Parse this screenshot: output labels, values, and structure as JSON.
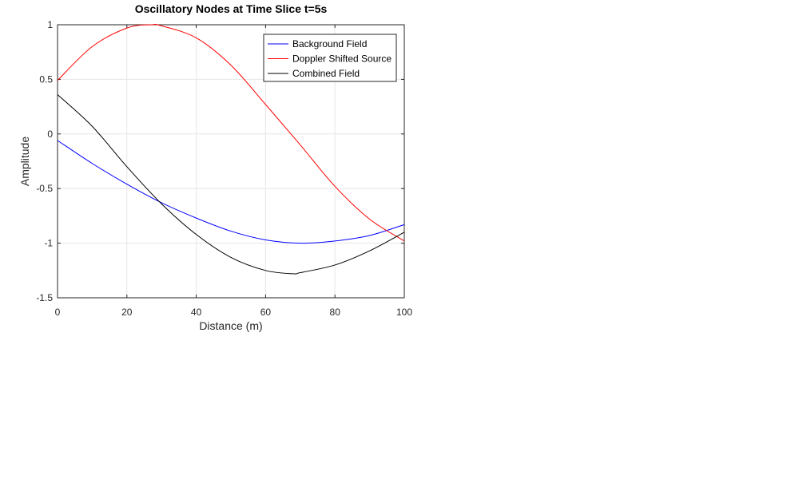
{
  "chart_data": {
    "type": "line",
    "title": "Oscillatory Nodes at Time Slice t=5s",
    "xlabel": "Distance (m)",
    "ylabel": "Amplitude",
    "xlim": [
      0,
      100
    ],
    "ylim": [
      -1.5,
      1
    ],
    "xticks": [
      0,
      20,
      40,
      60,
      80,
      100
    ],
    "yticks": [
      -1.5,
      -1,
      -0.5,
      0,
      0.5,
      1
    ],
    "xtick_labels": [
      "0",
      "20",
      "40",
      "60",
      "80",
      "100"
    ],
    "ytick_labels": [
      "-1.5",
      "-1",
      "-0.5",
      "0",
      "0.5",
      "1"
    ],
    "grid": true,
    "legend_position": "top-right",
    "series": [
      {
        "name": "Background Field",
        "color": "#0000ff",
        "x": [
          0,
          10,
          20,
          30,
          40,
          50,
          60,
          70,
          80,
          90,
          100
        ],
        "y": [
          -0.06,
          -0.27,
          -0.46,
          -0.63,
          -0.77,
          -0.89,
          -0.97,
          -1.0,
          -0.98,
          -0.93,
          -0.83
        ]
      },
      {
        "name": "Doppler Shifted Source",
        "color": "#ff0000",
        "x": [
          0,
          10,
          20,
          27,
          30,
          40,
          50,
          60,
          70,
          80,
          90,
          100
        ],
        "y": [
          0.49,
          0.8,
          0.97,
          1.0,
          0.99,
          0.88,
          0.63,
          0.27,
          -0.1,
          -0.48,
          -0.78,
          -0.98
        ]
      },
      {
        "name": "Combined Field",
        "color": "#000000",
        "x": [
          0,
          10,
          20,
          30,
          40,
          50,
          60,
          68,
          70,
          80,
          90,
          100
        ],
        "y": [
          0.36,
          0.07,
          -0.3,
          -0.64,
          -0.92,
          -1.13,
          -1.25,
          -1.28,
          -1.27,
          -1.2,
          -1.07,
          -0.9
        ]
      }
    ]
  }
}
